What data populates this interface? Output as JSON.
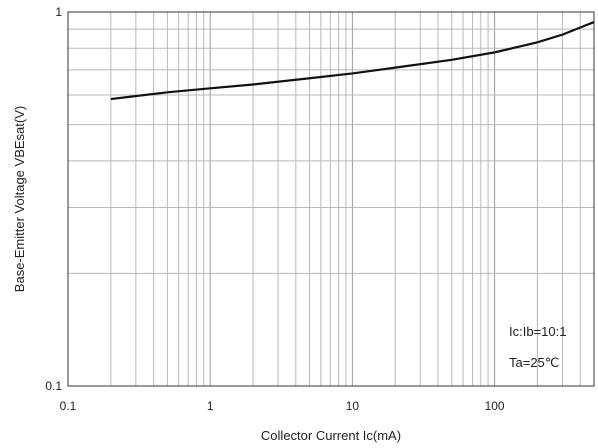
{
  "chart_data": {
    "type": "line",
    "xscale": "log",
    "yscale": "log",
    "xlim": [
      0.1,
      500
    ],
    "ylim": [
      0.1,
      1
    ],
    "grid": true,
    "xlabel": "Collector Current   Ic(mA)",
    "ylabel": "Base-Emitter Voltage    VBEsat(V)",
    "x_ticks": [
      {
        "value": 0.1,
        "label": "0.1"
      },
      {
        "value": 1,
        "label": "1"
      },
      {
        "value": 10,
        "label": "10"
      },
      {
        "value": 100,
        "label": "100"
      }
    ],
    "y_ticks": [
      {
        "value": 0.1,
        "label": "0.1"
      },
      {
        "value": 1,
        "label": "1"
      }
    ],
    "annotations": [
      "Ic:Ib=10:1",
      "Ta=25℃"
    ],
    "series": [
      {
        "color": "#111111",
        "x": [
          0.2,
          0.5,
          1,
          2,
          5,
          10,
          20,
          50,
          100,
          200,
          300,
          500
        ],
        "y": [
          0.585,
          0.61,
          0.625,
          0.64,
          0.665,
          0.685,
          0.71,
          0.745,
          0.78,
          0.83,
          0.87,
          0.94
        ]
      }
    ]
  }
}
